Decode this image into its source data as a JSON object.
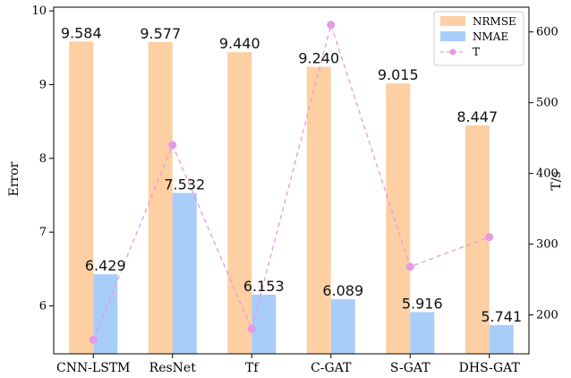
{
  "chart_data": {
    "type": "bar",
    "categories": [
      "CNN-LSTM",
      "ResNet",
      "Tf",
      "C-GAT",
      "S-GAT",
      "DHS-GAT"
    ],
    "series": [
      {
        "name": "NRMSE",
        "kind": "bar",
        "axis": "left",
        "color": "#fdcfa3",
        "values": [
          9.584,
          9.577,
          9.44,
          9.24,
          9.015,
          8.447
        ],
        "labels": [
          "9.584",
          "9.577",
          "9.440",
          "9.240",
          "9.015",
          "8.447"
        ]
      },
      {
        "name": "NMAE",
        "kind": "bar",
        "axis": "left",
        "color": "#a9cdf9",
        "values": [
          6.429,
          7.532,
          6.153,
          6.089,
          5.916,
          5.741
        ],
        "labels": [
          "6.429",
          "7.532",
          "6.153",
          "6.089",
          "5.916",
          "5.741"
        ]
      },
      {
        "name": "T",
        "kind": "line",
        "axis": "right",
        "color": "#e39be3",
        "linestyle": "dashed",
        "marker": "circle",
        "values": [
          165,
          440,
          180,
          610,
          268,
          310
        ]
      }
    ],
    "ylabel": "Error",
    "ylabel_right": "T/s",
    "ylim": [
      5.35,
      10.05
    ],
    "ylim_right": [
      145,
      635
    ],
    "yticks": [
      "6",
      "7",
      "8",
      "9",
      "10"
    ],
    "yticks_right": [
      "200",
      "300",
      "400",
      "500",
      "600"
    ],
    "legend_position": "top-right",
    "grid": false
  }
}
